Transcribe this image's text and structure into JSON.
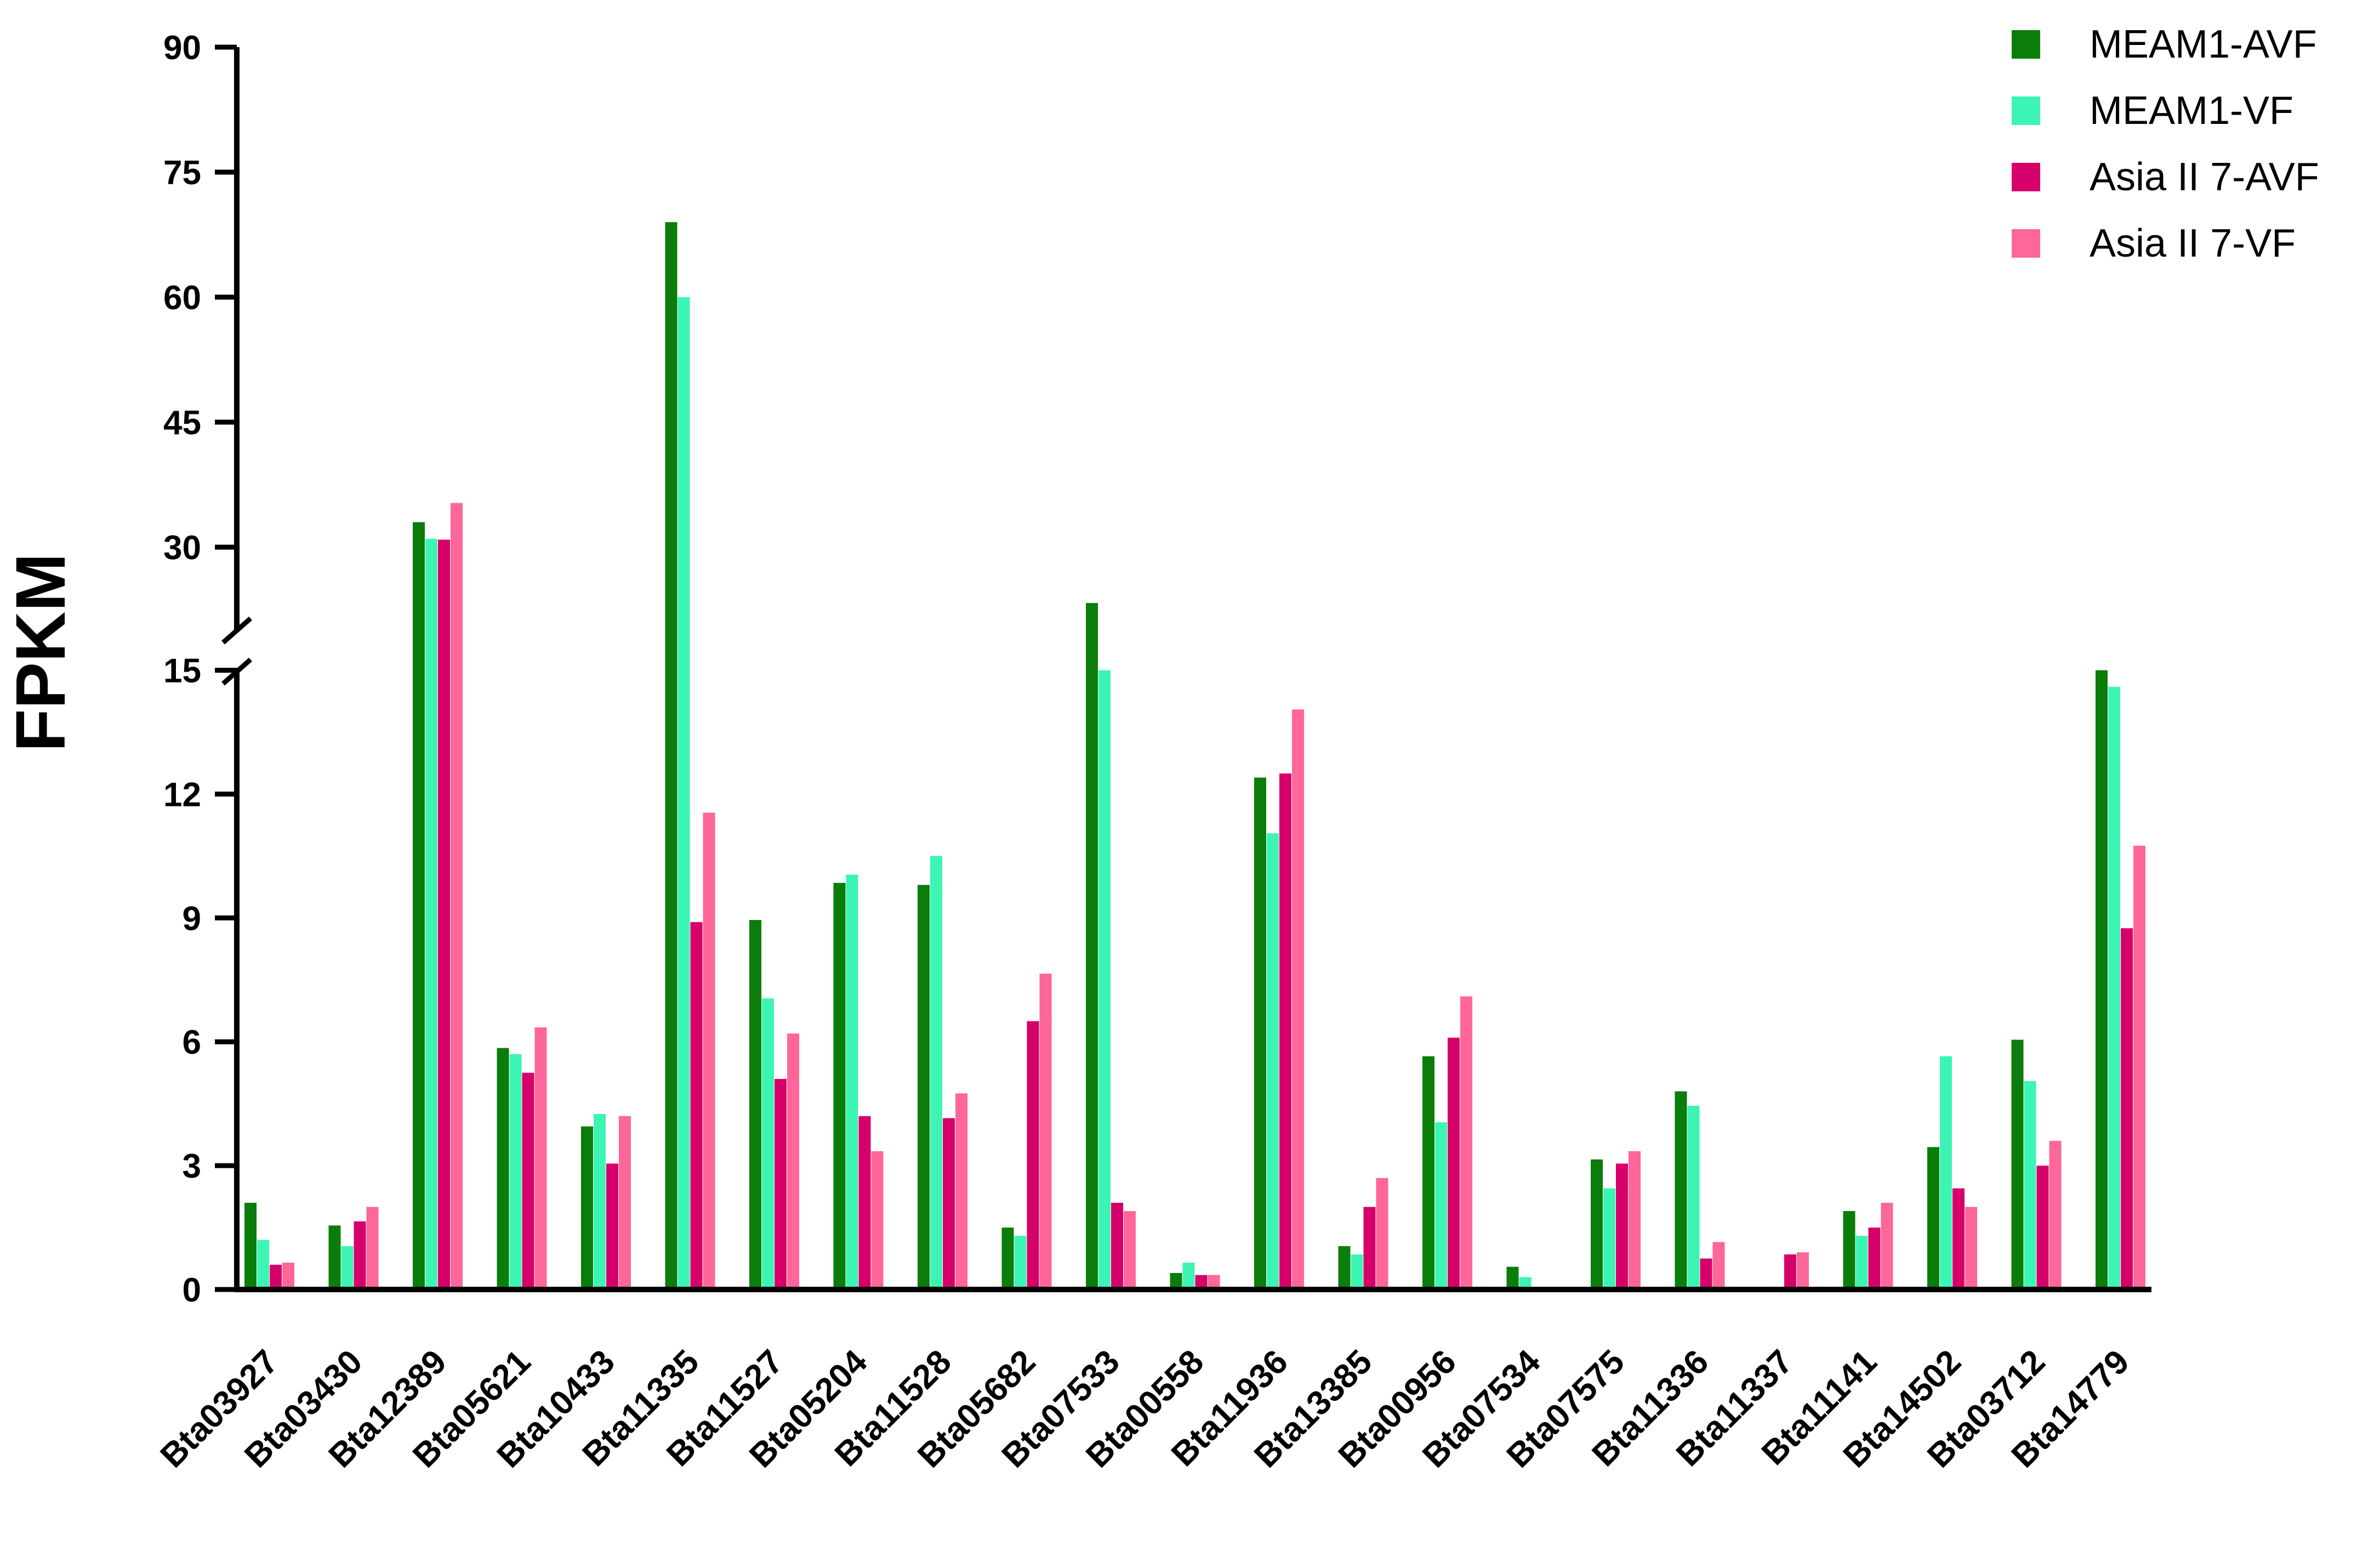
{
  "chart_data": {
    "type": "bar",
    "ylabel": "FPKM",
    "xlabel": "",
    "y_axis_break": [
      15,
      20
    ],
    "ylim": [
      0,
      90
    ],
    "y_ticks": [
      "0",
      "3",
      "6",
      "9",
      "12",
      "15",
      "30",
      "45",
      "60",
      "75",
      "90"
    ],
    "legend_position": "top-right",
    "categories": [
      "Bta03927",
      "Bta03430",
      "Bta12389",
      "Bta05621",
      "Bta10433",
      "Bta11335",
      "Bta11527",
      "Bta05204",
      "Bta11528",
      "Bta05682",
      "Bta07533",
      "Bta00558",
      "Bta11936",
      "Bta13385",
      "Bta00956",
      "Bta07534",
      "Bta07575",
      "Bta11336",
      "Bta11337",
      "Bta11141",
      "Bta14502",
      "Bta03712",
      "Bta14779"
    ],
    "series": [
      {
        "name": "MEAM1-AVF",
        "color": "#0a7d0a",
        "values": [
          2.1,
          1.55,
          33.0,
          5.85,
          3.95,
          69.0,
          8.95,
          9.85,
          9.8,
          1.5,
          23.3,
          0.4,
          12.4,
          1.05,
          5.65,
          0.55,
          3.15,
          4.8,
          0.05,
          1.9,
          3.45,
          6.05,
          15.0
        ]
      },
      {
        "name": "MEAM1-VF",
        "color": "#3cf5b4",
        "values": [
          1.2,
          1.05,
          31.0,
          5.7,
          4.25,
          60.0,
          7.05,
          10.05,
          10.5,
          1.3,
          19.2,
          0.65,
          11.05,
          0.85,
          4.05,
          0.3,
          2.45,
          4.45,
          0.05,
          1.3,
          5.65,
          5.05,
          14.6
        ]
      },
      {
        "name": "Asia II 7-AVF",
        "color": "#d6006a",
        "values": [
          0.6,
          1.65,
          30.9,
          5.25,
          3.05,
          8.9,
          5.1,
          4.2,
          4.15,
          6.5,
          2.1,
          0.35,
          12.5,
          2.0,
          6.1,
          0.05,
          3.05,
          0.75,
          0.85,
          1.5,
          2.45,
          3.0,
          8.75
        ]
      },
      {
        "name": "Asia II 7-VF",
        "color": "#ff6699",
        "values": [
          0.65,
          2.0,
          35.3,
          6.35,
          4.2,
          11.55,
          6.2,
          3.35,
          4.75,
          7.65,
          1.9,
          0.35,
          14.05,
          2.7,
          7.1,
          0.05,
          3.35,
          1.15,
          0.9,
          2.1,
          2.0,
          3.6,
          10.75
        ]
      }
    ]
  }
}
